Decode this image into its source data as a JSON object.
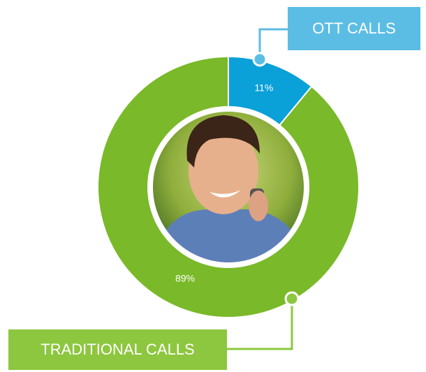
{
  "chart_data": {
    "type": "donut",
    "categories": [
      "OTT CALLS",
      "TRADITIONAL CALLS"
    ],
    "values": [
      11,
      89
    ],
    "value_labels": [
      "11%",
      "89%"
    ],
    "colors": [
      "#0aa0d8",
      "#7ab929"
    ]
  }
}
